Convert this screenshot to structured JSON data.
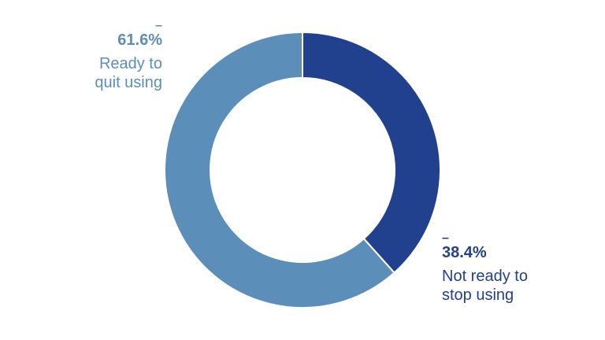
{
  "chart_data": {
    "type": "pie",
    "subtype": "donut",
    "title": "",
    "categories": [
      "Not ready to stop using",
      "Ready to quit using"
    ],
    "values": [
      38.4,
      61.6
    ],
    "unit": "%",
    "colors": [
      "#21418e",
      "#5b8fb9"
    ],
    "start_angle_deg": 0,
    "direction": "clockwise",
    "legend": "none",
    "annotations": [
      {
        "category": "Ready to quit using",
        "dash": "–",
        "value_label": "61.6%",
        "text_lines": [
          "Ready to",
          "quit using"
        ],
        "position": "top-left"
      },
      {
        "category": "Not ready to stop using",
        "dash": "–",
        "value_label": "38.4%",
        "text_lines": [
          "Not ready to",
          "stop using"
        ],
        "position": "bottom-right"
      }
    ]
  },
  "labels": {
    "ready": {
      "dash": "–",
      "pct": "61.6%",
      "line1": "Ready to",
      "line2": "quit using"
    },
    "not_ready": {
      "dash": "–",
      "pct": "38.4%",
      "line1": "Not ready to",
      "line2": "stop using"
    }
  }
}
